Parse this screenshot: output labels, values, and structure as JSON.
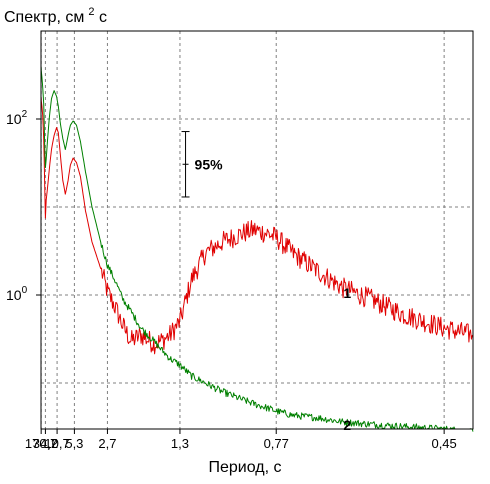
{
  "chart_data": {
    "type": "line",
    "ylabel": "Спектр, см",
    "ylabel_sup": "2",
    "ylabel_tail": " с",
    "xlabel": "Период, с",
    "x_scale": "reciprocal",
    "y_scale": "log",
    "xlim_period": [
      200,
      0.42
    ],
    "ylim": [
      0.03,
      1000
    ],
    "grid": true,
    "x_ticks": [
      {
        "value": 170.7,
        "label": "170,7"
      },
      {
        "value": 34.2,
        "label": "34,2"
      },
      {
        "value": 10.7,
        "label": "10,7"
      },
      {
        "value": 5.3,
        "label": "5,3"
      },
      {
        "value": 2.7,
        "label": "2,7"
      },
      {
        "value": 1.3,
        "label": "1,3"
      },
      {
        "value": 0.77,
        "label": "0,77"
      },
      {
        "value": 0.45,
        "label": "0,45"
      }
    ],
    "x_grid_periods": [
      170.7,
      34.2,
      10.7,
      5.3,
      2.7,
      1.3,
      0.77,
      0.45
    ],
    "y_ticks": [
      {
        "value": 100,
        "base": "10",
        "exp": "2"
      },
      {
        "value": 1,
        "base": "10",
        "exp": "0"
      }
    ],
    "y_grid": [
      10,
      100,
      1,
      0.1
    ],
    "confidence": {
      "label": "95%",
      "period": 1.25,
      "low": 13,
      "high": 72
    },
    "series": [
      {
        "name": "1",
        "color": "#e00000",
        "noise": 0.12,
        "period": [
          200,
          150,
          100,
          70,
          50,
          40,
          34,
          30,
          25,
          20,
          16,
          13,
          11,
          10,
          9,
          8,
          7.2,
          6.5,
          6,
          5.5,
          5,
          4.5,
          4,
          3.5,
          3,
          2.7,
          2.4,
          2.2,
          2.0,
          1.8,
          1.6,
          1.5,
          1.4,
          1.3,
          1.2,
          1.1,
          1.0,
          0.9,
          0.85,
          0.8,
          0.77,
          0.72,
          0.65,
          0.6,
          0.55,
          0.5,
          0.45,
          0.42
        ],
        "values": [
          180,
          160,
          140,
          110,
          60,
          20,
          7.5,
          12,
          16,
          26,
          45,
          65,
          80,
          70,
          40,
          20,
          14,
          20,
          30,
          36,
          32,
          22,
          9,
          4,
          2,
          1.1,
          0.7,
          0.45,
          0.3,
          0.35,
          0.28,
          0.3,
          0.35,
          0.5,
          1.5,
          3,
          4,
          5,
          5.5,
          5,
          4.5,
          3,
          1.8,
          1.2,
          0.9,
          0.6,
          0.42,
          0.35
        ]
      },
      {
        "name": "2",
        "color": "#008000",
        "noise": 0.04,
        "period": [
          200,
          150,
          100,
          70,
          50,
          40,
          34,
          30,
          25,
          20,
          16,
          13,
          11,
          10,
          9,
          8,
          7.2,
          6.5,
          6,
          5.5,
          5,
          4.5,
          4,
          3.5,
          3,
          2.7,
          2.4,
          2.2,
          2.0,
          1.8,
          1.6,
          1.5,
          1.4,
          1.3,
          1.2,
          1.1,
          1.0,
          0.9,
          0.85,
          0.8,
          0.77,
          0.72,
          0.65,
          0.6,
          0.55,
          0.5,
          0.45,
          0.42
        ],
        "values": [
          400,
          350,
          300,
          230,
          150,
          55,
          28,
          35,
          55,
          100,
          170,
          210,
          180,
          140,
          90,
          60,
          45,
          65,
          85,
          95,
          85,
          55,
          25,
          10,
          4,
          2.2,
          1.4,
          0.9,
          0.65,
          0.42,
          0.3,
          0.24,
          0.19,
          0.16,
          0.12,
          0.1,
          0.08,
          0.065,
          0.058,
          0.052,
          0.048,
          0.043,
          0.04,
          0.036,
          0.034,
          0.032,
          0.03,
          0.028
        ]
      }
    ]
  }
}
